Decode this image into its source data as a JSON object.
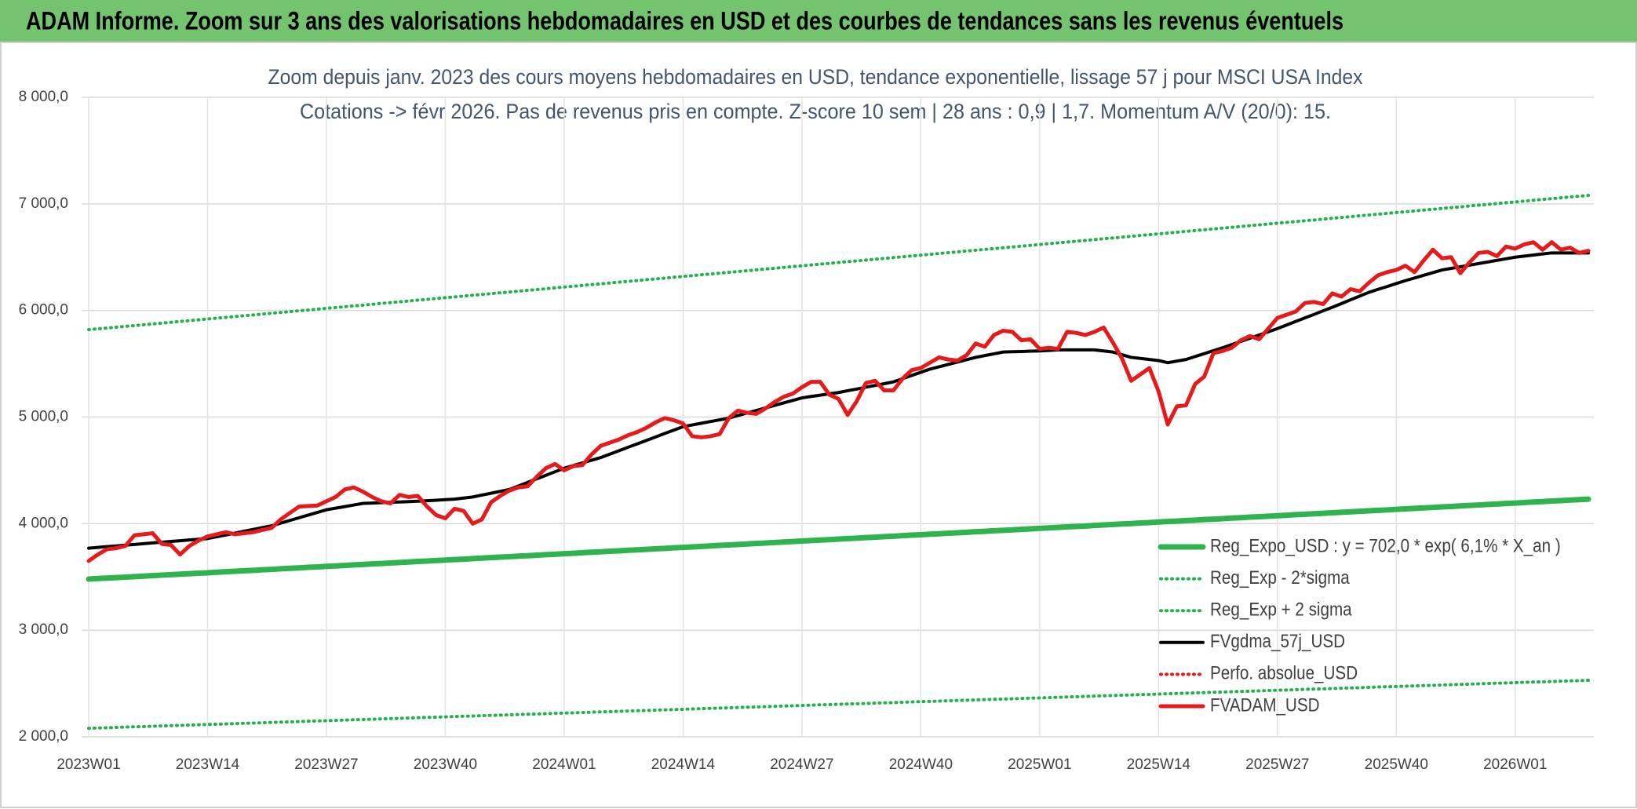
{
  "page_title": "ADAM Informe. Zoom sur 3 ans des valorisations hebdomadaires en USD et des courbes de tendances sans les revenus éventuels",
  "chart_data": {
    "type": "line",
    "title": "Zoom depuis janv. 2023 des cours moyens hebdomadaires en USD, tendance exponentielle, lissage 57 j pour MSCI USA Index",
    "subtitle": "Cotations -> févr 2026. Pas de revenus pris en compte. Z-score 10 sem | 28 ans : 0,9 | 1,7. Momentum A/V (20/0): 15.",
    "categories": [
      "2023W01",
      null,
      null,
      null,
      null,
      null,
      null,
      null,
      null,
      null,
      null,
      null,
      null,
      "2023W14",
      null,
      null,
      null,
      null,
      null,
      null,
      null,
      null,
      null,
      null,
      null,
      null,
      "2023W27",
      null,
      null,
      null,
      null,
      null,
      null,
      null,
      null,
      null,
      null,
      null,
      null,
      "2023W40",
      null,
      null,
      null,
      null,
      null,
      null,
      null,
      null,
      null,
      null,
      null,
      null,
      "2024W01",
      null,
      null,
      null,
      null,
      null,
      null,
      null,
      null,
      null,
      null,
      null,
      null,
      "2024W14",
      null,
      null,
      null,
      null,
      null,
      null,
      null,
      null,
      null,
      null,
      null,
      null,
      "2024W27",
      null,
      null,
      null,
      null,
      null,
      null,
      null,
      null,
      null,
      null,
      null,
      null,
      "2024W40",
      null,
      null,
      null,
      null,
      null,
      null,
      null,
      null,
      null,
      null,
      null,
      null,
      "2025W01",
      null,
      null,
      null,
      null,
      null,
      null,
      null,
      null,
      null,
      null,
      null,
      null,
      "2025W14",
      null,
      null,
      null,
      null,
      null,
      null,
      null,
      null,
      null,
      null,
      null,
      null,
      "2025W27",
      null,
      null,
      null,
      null,
      null,
      null,
      null,
      null,
      null,
      null,
      null,
      null,
      "2025W40",
      null,
      null,
      null,
      null,
      null,
      null,
      null,
      null,
      null,
      null,
      null,
      null,
      "2026W01",
      null,
      null,
      null,
      null,
      null,
      null,
      null,
      null
    ],
    "ylim": [
      2000,
      8000
    ],
    "yticks": [
      {
        "value": 2000,
        "label": "2 000,0"
      },
      {
        "value": 3000,
        "label": "3 000,0"
      },
      {
        "value": 4000,
        "label": "4 000,0"
      },
      {
        "value": 5000,
        "label": "5 000,0"
      },
      {
        "value": 6000,
        "label": "6 000,0"
      },
      {
        "value": 7000,
        "label": "7 000,0"
      },
      {
        "value": 8000,
        "label": "8 000,0"
      }
    ],
    "grid": true,
    "legend": "lower right",
    "series": [
      {
        "name": "Reg_Expo_USD : y = 702,0 * exp( 6,1% *  X_an )",
        "color": "#2eb34f",
        "line_style": "solid",
        "values": [
          3480,
          3485,
          3489,
          3494,
          3498,
          3503,
          3507,
          3512,
          3517,
          3521,
          3526,
          3530,
          3535,
          3539,
          3544,
          3549,
          3553,
          3558,
          3562,
          3567,
          3571,
          3576,
          3581,
          3585,
          3590,
          3594,
          3599,
          3603,
          3608,
          3613,
          3617,
          3622,
          3626,
          3631,
          3635,
          3640,
          3645,
          3649,
          3654,
          3658,
          3663,
          3667,
          3672,
          3677,
          3681,
          3686,
          3690,
          3695,
          3699,
          3704,
          3709,
          3713,
          3718,
          3722,
          3727,
          3732,
          3736,
          3741,
          3745,
          3750,
          3754,
          3759,
          3764,
          3768,
          3773,
          3777,
          3782,
          3786,
          3791,
          3796,
          3800,
          3805,
          3809,
          3814,
          3818,
          3823,
          3828,
          3832,
          3837,
          3841,
          3846,
          3850,
          3855,
          3860,
          3864,
          3869,
          3873,
          3878,
          3882,
          3887,
          3892,
          3896,
          3901,
          3905,
          3910,
          3914,
          3919,
          3924,
          3928,
          3933,
          3937,
          3942,
          3946,
          3951,
          3956,
          3960,
          3965,
          3969,
          3974,
          3978,
          3983,
          3988,
          3992,
          3997,
          4001,
          4006,
          4010,
          4015,
          4020,
          4024,
          4029,
          4033,
          4038,
          4042,
          4047,
          4052,
          4056,
          4061,
          4065,
          4070,
          4074,
          4079,
          4084,
          4088,
          4093,
          4097,
          4102,
          4106,
          4111,
          4116,
          4120,
          4125,
          4129,
          4134,
          4139,
          4143,
          4148,
          4152,
          4157,
          4161,
          4166,
          4171,
          4175,
          4180,
          4184,
          4189,
          4193,
          4198,
          4203,
          4207,
          4212,
          4216,
          4221,
          4225,
          4230
        ]
      },
      {
        "name": "Reg_Exp - 2*sigma",
        "color": "#22b14c",
        "line_style": "dotted",
        "values": [
          2080,
          2083,
          2085,
          2088,
          2091,
          2094,
          2096,
          2099,
          2102,
          2105,
          2107,
          2110,
          2113,
          2116,
          2118,
          2121,
          2124,
          2127,
          2129,
          2132,
          2135,
          2138,
          2140,
          2143,
          2146,
          2149,
          2151,
          2154,
          2157,
          2160,
          2162,
          2165,
          2168,
          2171,
          2173,
          2176,
          2179,
          2182,
          2184,
          2187,
          2190,
          2193,
          2195,
          2198,
          2201,
          2203,
          2206,
          2209,
          2212,
          2214,
          2217,
          2220,
          2223,
          2225,
          2228,
          2231,
          2234,
          2236,
          2239,
          2242,
          2245,
          2247,
          2250,
          2253,
          2256,
          2258,
          2261,
          2264,
          2267,
          2269,
          2272,
          2275,
          2278,
          2280,
          2283,
          2286,
          2289,
          2291,
          2294,
          2297,
          2300,
          2302,
          2305,
          2308,
          2310,
          2313,
          2316,
          2319,
          2321,
          2324,
          2327,
          2330,
          2332,
          2335,
          2338,
          2341,
          2343,
          2346,
          2349,
          2352,
          2354,
          2357,
          2360,
          2363,
          2365,
          2368,
          2371,
          2374,
          2376,
          2379,
          2382,
          2385,
          2387,
          2390,
          2393,
          2396,
          2398,
          2401,
          2404,
          2407,
          2409,
          2412,
          2415,
          2418,
          2420,
          2423,
          2426,
          2428,
          2431,
          2434,
          2437,
          2439,
          2442,
          2445,
          2448,
          2450,
          2453,
          2456,
          2459,
          2461,
          2464,
          2467,
          2470,
          2472,
          2475,
          2478,
          2481,
          2483,
          2486,
          2489,
          2492,
          2494,
          2497,
          2500,
          2503,
          2505,
          2508,
          2511,
          2514,
          2516,
          2519,
          2522,
          2525,
          2527,
          2530
        ]
      },
      {
        "name": "Reg_Exp + 2 sigma",
        "color": "#22b14c",
        "line_style": "dotted",
        "values": [
          5820,
          5828,
          5835,
          5843,
          5851,
          5858,
          5866,
          5874,
          5881,
          5889,
          5897,
          5905,
          5912,
          5920,
          5928,
          5935,
          5943,
          5951,
          5958,
          5966,
          5974,
          5981,
          5989,
          5997,
          6004,
          6012,
          6020,
          6027,
          6035,
          6043,
          6050,
          6058,
          6066,
          6074,
          6081,
          6089,
          6097,
          6104,
          6112,
          6120,
          6127,
          6135,
          6143,
          6150,
          6158,
          6166,
          6173,
          6181,
          6189,
          6196,
          6204,
          6212,
          6220,
          6227,
          6235,
          6243,
          6250,
          6258,
          6266,
          6273,
          6281,
          6289,
          6296,
          6304,
          6312,
          6319,
          6327,
          6335,
          6342,
          6350,
          6358,
          6365,
          6373,
          6381,
          6389,
          6396,
          6404,
          6412,
          6419,
          6427,
          6435,
          6442,
          6450,
          6458,
          6465,
          6473,
          6481,
          6488,
          6496,
          6504,
          6511,
          6519,
          6527,
          6534,
          6542,
          6550,
          6558,
          6565,
          6573,
          6581,
          6588,
          6596,
          6604,
          6611,
          6619,
          6627,
          6634,
          6642,
          6650,
          6657,
          6665,
          6673,
          6680,
          6688,
          6696,
          6704,
          6711,
          6719,
          6727,
          6734,
          6742,
          6750,
          6757,
          6765,
          6773,
          6780,
          6788,
          6796,
          6803,
          6811,
          6819,
          6826,
          6834,
          6842,
          6849,
          6857,
          6865,
          6873,
          6880,
          6888,
          6896,
          6903,
          6911,
          6919,
          6926,
          6934,
          6942,
          6949,
          6957,
          6965,
          6972,
          6980,
          6988,
          6995,
          7003,
          7011,
          7018,
          7026,
          7034,
          7042,
          7049,
          7057,
          7065,
          7072,
          7080
        ]
      },
      {
        "name": "FVgdma_57j_USD",
        "color": "#000000",
        "line_style": "solid",
        "values": [
          3770,
          3777,
          3784,
          3791,
          3798,
          3805,
          3812,
          3819,
          3826,
          3833,
          3840,
          3847,
          3853,
          3860,
          3877,
          3894,
          3911,
          3929,
          3946,
          3963,
          3980,
          4005,
          4030,
          4055,
          4080,
          4105,
          4130,
          4145,
          4160,
          4175,
          4190,
          4193,
          4197,
          4200,
          4203,
          4207,
          4210,
          4215,
          4220,
          4225,
          4230,
          4240,
          4250,
          4268,
          4285,
          4303,
          4320,
          4353,
          4387,
          4420,
          4453,
          4487,
          4520,
          4545,
          4570,
          4595,
          4620,
          4652,
          4684,
          4717,
          4749,
          4781,
          4813,
          4846,
          4878,
          4910,
          4926,
          4942,
          4958,
          4974,
          4990,
          5014,
          5038,
          5061,
          5085,
          5109,
          5133,
          5156,
          5180,
          5193,
          5205,
          5218,
          5230,
          5247,
          5263,
          5280,
          5297,
          5313,
          5330,
          5360,
          5390,
          5420,
          5450,
          5472,
          5494,
          5516,
          5538,
          5560,
          5577,
          5593,
          5610,
          5613,
          5615,
          5618,
          5620,
          5625,
          5630,
          5630,
          5630,
          5630,
          5630,
          5620,
          5610,
          5585,
          5560,
          5550,
          5540,
          5530,
          5510,
          5525,
          5540,
          5568,
          5595,
          5623,
          5650,
          5680,
          5710,
          5740,
          5770,
          5800,
          5830,
          5863,
          5897,
          5930,
          5963,
          5997,
          6030,
          6065,
          6100,
          6135,
          6170,
          6198,
          6225,
          6253,
          6280,
          6305,
          6330,
          6355,
          6380,
          6395,
          6410,
          6425,
          6440,
          6455,
          6470,
          6485,
          6500,
          6510,
          6520,
          6530,
          6540,
          6540,
          6540,
          6540,
          6540
        ]
      },
      {
        "name": "Perfo. absolue_USD",
        "color": "#e51b1b",
        "line_style": "dotted",
        "values": [
          null,
          null,
          null,
          null,
          null,
          null,
          null,
          null,
          null,
          null,
          null,
          null,
          null,
          null,
          null,
          null,
          null,
          null,
          null,
          null,
          null,
          null,
          null,
          null,
          null,
          null,
          null,
          null,
          null,
          null,
          null,
          null,
          null,
          null,
          null,
          null,
          null,
          null,
          null,
          null,
          null,
          null,
          null,
          null,
          null,
          null,
          null,
          null,
          null,
          null,
          null,
          null,
          null,
          null,
          null,
          null,
          null,
          null,
          null,
          null,
          null,
          null,
          null,
          null,
          null,
          null,
          null,
          null,
          null,
          null,
          null,
          null,
          null,
          null,
          null,
          null,
          null,
          null,
          null,
          null,
          null,
          null,
          null,
          null,
          null,
          null,
          null,
          null,
          null,
          null,
          null,
          null,
          null,
          null,
          null,
          null,
          null,
          null,
          null,
          null,
          null,
          null,
          null,
          null,
          null,
          null,
          null,
          null,
          null,
          null,
          null,
          null,
          null,
          null,
          null,
          null,
          null,
          null,
          null,
          null,
          null,
          null,
          null,
          null,
          null,
          null,
          null,
          null,
          null,
          null,
          null,
          null,
          null,
          null,
          null,
          null,
          null,
          null,
          null,
          null,
          null,
          null,
          null,
          null,
          null,
          null,
          null,
          null,
          null,
          null,
          null,
          null,
          null,
          null,
          null,
          null,
          null,
          null,
          null,
          null,
          null,
          null,
          null,
          null,
          null
        ]
      },
      {
        "name": "FVADAM_USD",
        "color": "#e51b1b",
        "line_style": "solid",
        "values": [
          3650,
          3710,
          3760,
          3770,
          3790,
          3890,
          3900,
          3910,
          3810,
          3800,
          3710,
          3790,
          3840,
          3880,
          3900,
          3920,
          3900,
          3910,
          3920,
          3940,
          3960,
          4040,
          4100,
          4160,
          4165,
          4170,
          4210,
          4250,
          4320,
          4340,
          4300,
          4250,
          4210,
          4190,
          4270,
          4250,
          4260,
          4160,
          4080,
          4050,
          4140,
          4120,
          4000,
          4040,
          4200,
          4260,
          4310,
          4340,
          4350,
          4440,
          4520,
          4560,
          4500,
          4540,
          4550,
          4650,
          4730,
          4760,
          4790,
          4830,
          4860,
          4900,
          4950,
          4990,
          4970,
          4940,
          4820,
          4810,
          4820,
          4840,
          4990,
          5060,
          5040,
          5030,
          5080,
          5140,
          5190,
          5220,
          5280,
          5330,
          5330,
          5210,
          5170,
          5020,
          5150,
          5320,
          5340,
          5250,
          5250,
          5360,
          5440,
          5460,
          5510,
          5560,
          5540,
          5530,
          5580,
          5690,
          5660,
          5770,
          5810,
          5800,
          5720,
          5730,
          5640,
          5650,
          5640,
          5800,
          5790,
          5770,
          5800,
          5840,
          5700,
          5550,
          5340,
          5400,
          5460,
          5240,
          4930,
          5100,
          5110,
          5310,
          5380,
          5600,
          5620,
          5650,
          5720,
          5760,
          5730,
          5830,
          5930,
          5960,
          5990,
          6070,
          6080,
          6060,
          6160,
          6130,
          6200,
          6180,
          6260,
          6330,
          6360,
          6380,
          6420,
          6360,
          6470,
          6570,
          6490,
          6500,
          6350,
          6450,
          6540,
          6550,
          6510,
          6600,
          6580,
          6620,
          6640,
          6570,
          6640,
          6570,
          6590,
          6540,
          6560
        ]
      }
    ]
  }
}
